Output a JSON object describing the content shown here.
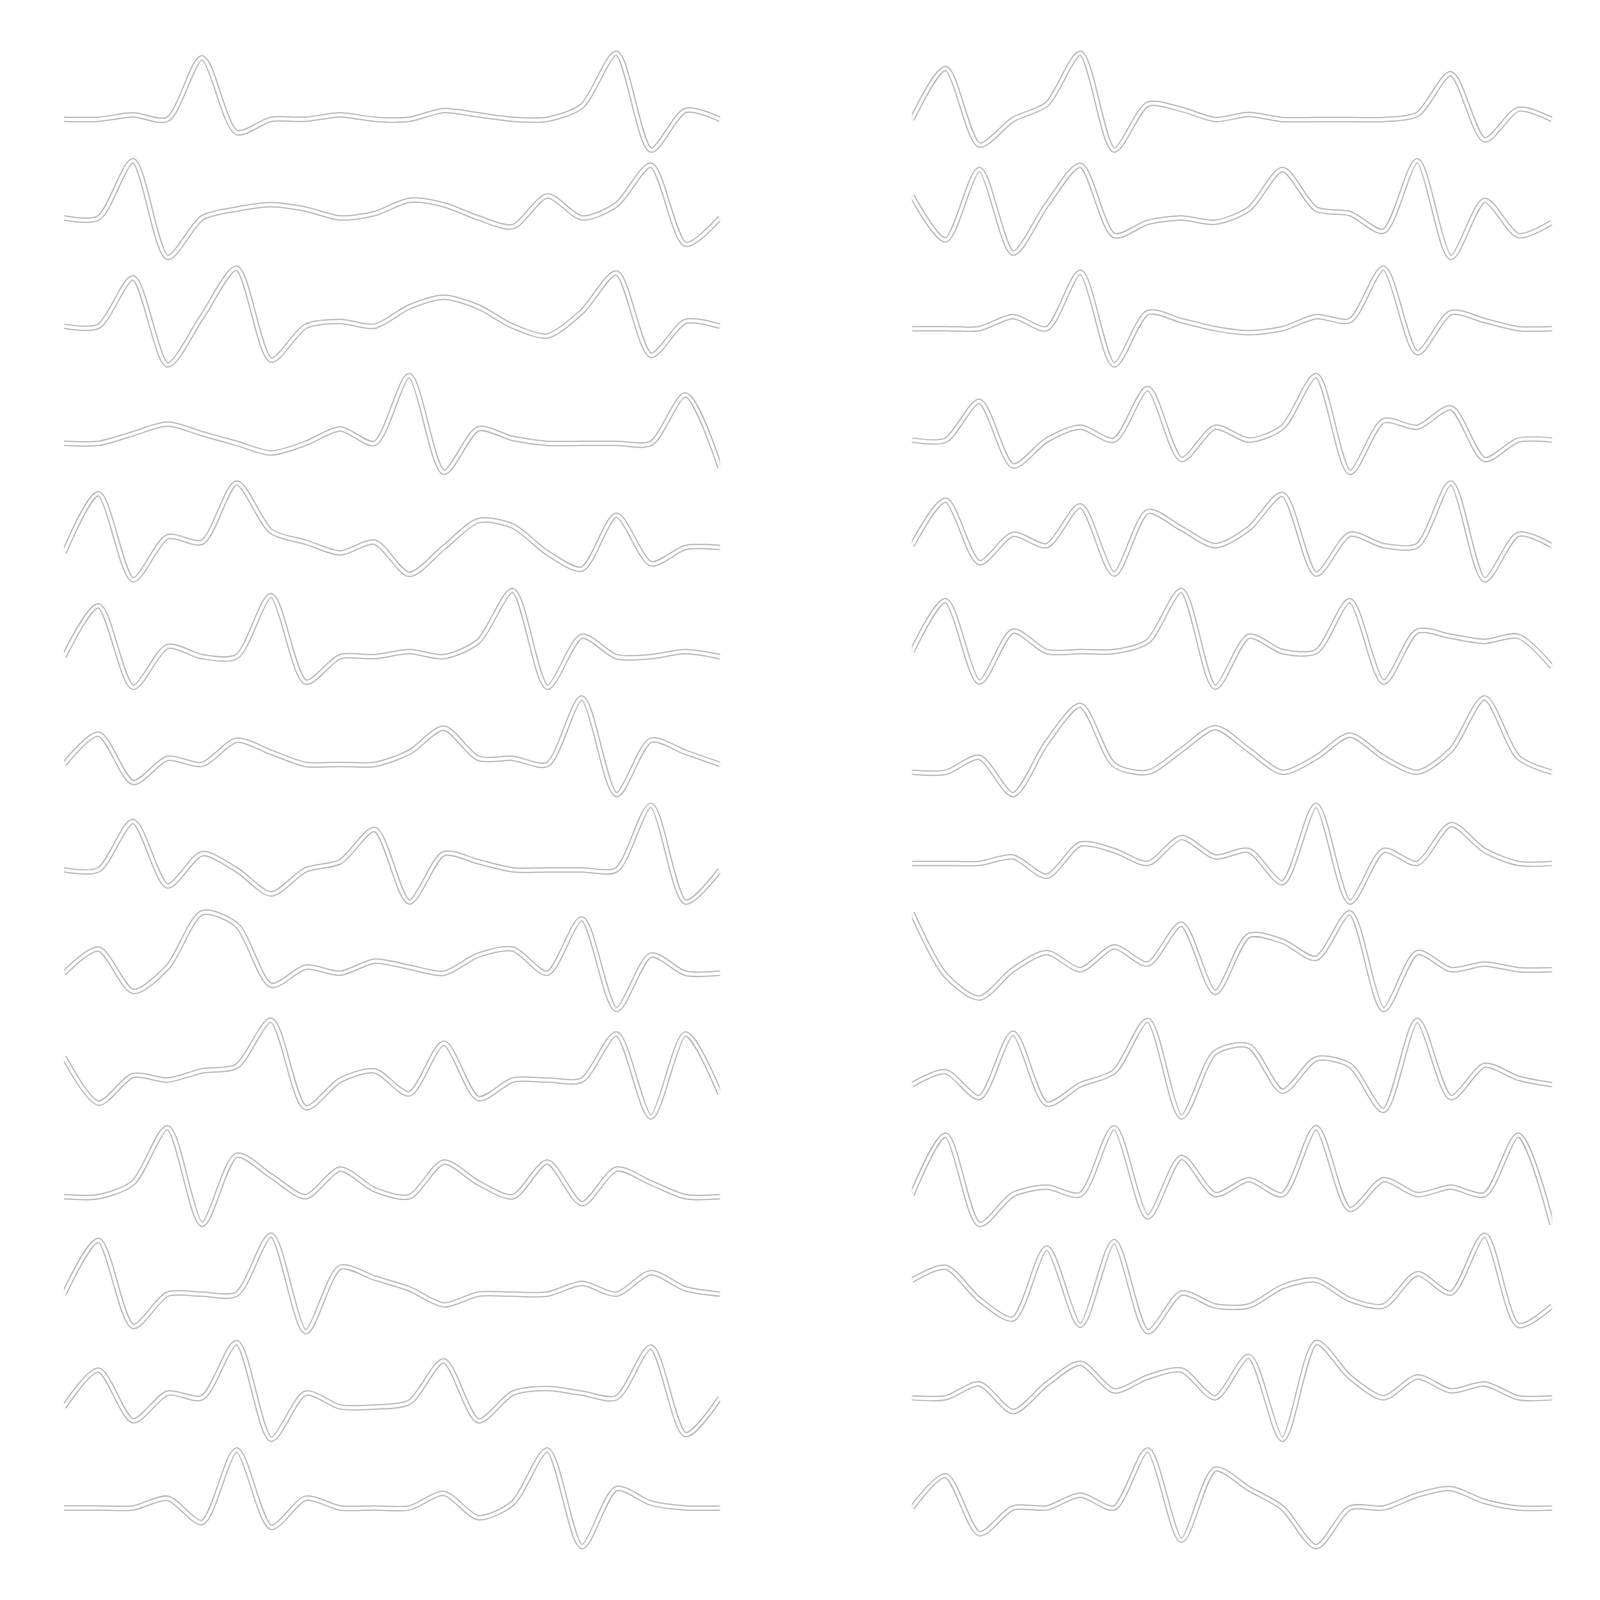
{
  "chart_data": [
    {
      "type": "line",
      "grid": false,
      "tick_labels": false,
      "line_style": "solid",
      "x": [
        0,
        1,
        2,
        3,
        4,
        5,
        6,
        7,
        8,
        9,
        10,
        11,
        12,
        13,
        14,
        15,
        16,
        17,
        18,
        19
      ],
      "series": [
        {
          "color": "#b5b5b5",
          "values": [
            0,
            0,
            0.1,
            0,
            1.4,
            -0.3,
            0,
            0,
            0.1,
            0,
            0,
            0.2,
            0.1,
            0,
            0,
            0.3,
            1.5,
            -0.7,
            0.2,
            0
          ]
        },
        {
          "color": "#b5b5b5",
          "values": [
            0,
            0,
            1.3,
            -0.9,
            0,
            0.2,
            0.3,
            0.2,
            0,
            0.1,
            0.4,
            0.3,
            0,
            -0.2,
            0.5,
            0,
            0.3,
            1.2,
            -0.6,
            0
          ]
        },
        {
          "color": "#b5b5b5",
          "values": [
            0,
            0,
            1.0,
            -0.8,
            0.2,
            1.2,
            -0.7,
            0,
            0.1,
            0,
            0.4,
            0.6,
            0.4,
            0,
            -0.2,
            0.3,
            1.1,
            -0.6,
            0.1,
            0
          ]
        },
        {
          "color": "#b5b5b5",
          "values": [
            0,
            0,
            0.2,
            0.4,
            0.2,
            0,
            -0.2,
            0,
            0.3,
            0,
            1.4,
            -0.6,
            0.3,
            0.1,
            0,
            0,
            0,
            0,
            1.0,
            -0.5
          ]
        },
        {
          "color": "#b5b5b5",
          "values": [
            0,
            1.1,
            -0.5,
            0.3,
            0.2,
            1.3,
            0.4,
            0.2,
            0,
            0.2,
            -0.4,
            0.1,
            0.6,
            0.5,
            0,
            -0.3,
            0.7,
            -0.2,
            0.1,
            0.1
          ]
        },
        {
          "color": "#b5b5b5",
          "values": [
            0,
            1.0,
            -0.6,
            0.2,
            0,
            0,
            1.2,
            -0.5,
            0,
            0,
            0.1,
            0,
            0.3,
            1.3,
            -0.6,
            0.4,
            0,
            0,
            0.1,
            0
          ]
        },
        {
          "color": "#b5b5b5",
          "values": [
            0,
            0.5,
            -0.3,
            0.1,
            0,
            0.4,
            0.2,
            0,
            0,
            0,
            0.2,
            0.6,
            0.1,
            0.1,
            0,
            1.1,
            -0.5,
            0.4,
            0.2,
            0
          ]
        },
        {
          "color": "#b5b5b5",
          "values": [
            0,
            0,
            0.6,
            -0.2,
            0.2,
            0,
            -0.3,
            0,
            0.1,
            0.5,
            -0.4,
            0.2,
            0.1,
            0,
            0,
            0,
            0,
            0.8,
            -0.4,
            0
          ]
        },
        {
          "color": "#b5b5b5",
          "values": [
            0,
            0.4,
            -0.3,
            0.1,
            1.0,
            0.8,
            -0.2,
            0.1,
            0,
            0.2,
            0.1,
            0,
            0.3,
            0.4,
            0,
            0.9,
            -0.6,
            0.3,
            0,
            0
          ]
        },
        {
          "color": "#b5b5b5",
          "values": [
            0.5,
            -0.5,
            0.1,
            0,
            0.2,
            0.3,
            1.3,
            -0.6,
            0,
            0.2,
            -0.3,
            0.8,
            -0.4,
            0,
            0,
            0,
            1.0,
            -0.8,
            1.0,
            -0.3
          ]
        },
        {
          "color": "#b5b5b5",
          "values": [
            0,
            0,
            0.2,
            1.0,
            -0.4,
            0.6,
            0.3,
            0,
            0.4,
            0.1,
            0,
            0.5,
            0.2,
            0,
            0.5,
            -0.1,
            0.4,
            0.2,
            0,
            0
          ]
        },
        {
          "color": "#b5b5b5",
          "values": [
            0,
            1.0,
            -0.6,
            0,
            0,
            0,
            1.1,
            -0.7,
            0.5,
            0.3,
            0.1,
            -0.2,
            0,
            0,
            0,
            0.2,
            0,
            0.4,
            0.1,
            0
          ]
        },
        {
          "color": "#b5b5b5",
          "values": [
            0,
            0.8,
            -0.3,
            0.3,
            0.2,
            1.4,
            -0.7,
            0.3,
            0,
            0,
            0.1,
            1.0,
            -0.3,
            0.3,
            0.4,
            0.3,
            0.2,
            1.3,
            -0.6,
            0.2
          ]
        },
        {
          "color": "#b5b5b5",
          "values": [
            0,
            0,
            0,
            0.2,
            -0.3,
            1.2,
            -0.4,
            0.2,
            0,
            0,
            0,
            0.3,
            -0.2,
            0.1,
            1.2,
            -0.8,
            0.4,
            0.1,
            0,
            0
          ]
        }
      ]
    },
    {
      "type": "line",
      "grid": false,
      "tick_labels": false,
      "line_style": "solid",
      "x": [
        0,
        1,
        2,
        3,
        4,
        5,
        6,
        7,
        8,
        9,
        10,
        11,
        12,
        13,
        14,
        15,
        16,
        17,
        18,
        19
      ],
      "series": [
        {
          "color": "#b5b5b5",
          "values": [
            0,
            1.0,
            -0.5,
            0,
            0.3,
            1.3,
            -0.6,
            0.3,
            0.2,
            0,
            0.1,
            0,
            0,
            0,
            0,
            0.1,
            0.9,
            -0.4,
            0.2,
            0
          ]
        },
        {
          "color": "#b5b5b5",
          "values": [
            0.6,
            -0.4,
            1.2,
            -0.7,
            0.4,
            1.3,
            -0.3,
            0,
            0.1,
            0,
            0.3,
            1.2,
            0.3,
            0.2,
            -0.2,
            1.4,
            -0.8,
            0.5,
            -0.3,
            0
          ]
        },
        {
          "color": "#b5b5b5",
          "values": [
            0,
            0,
            0,
            0.3,
            0,
            1.4,
            -0.9,
            0.4,
            0.2,
            0,
            -0.1,
            0,
            0.3,
            0.2,
            1.5,
            -0.6,
            0.4,
            0.2,
            0,
            0
          ]
        },
        {
          "color": "#b5b5b5",
          "values": [
            0,
            0,
            0.6,
            -0.4,
            0,
            0.2,
            0,
            0.8,
            -0.3,
            0.2,
            0,
            0.2,
            1.0,
            -0.5,
            0.3,
            0.2,
            0.5,
            -0.3,
            0,
            0
          ]
        },
        {
          "color": "#b5b5b5",
          "values": [
            0,
            0.8,
            -0.3,
            0.2,
            0,
            0.7,
            -0.5,
            0.6,
            0.3,
            0,
            0.3,
            0.9,
            -0.5,
            0.2,
            0,
            0,
            1.1,
            -0.6,
            0.2,
            0
          ]
        },
        {
          "color": "#b5b5b5",
          "values": [
            0,
            1.0,
            -0.6,
            0.4,
            0,
            0,
            0,
            0.2,
            1.2,
            -0.7,
            0.3,
            0,
            0,
            1.0,
            -0.6,
            0.4,
            0.3,
            0.2,
            0.3,
            -0.3
          ]
        },
        {
          "color": "#b5b5b5",
          "values": [
            0,
            0,
            0.2,
            -0.3,
            0.4,
            0.9,
            0.1,
            0,
            0.3,
            0.6,
            0.3,
            0,
            0.2,
            0.5,
            0.2,
            0,
            0.3,
            1.0,
            0.2,
            0
          ]
        },
        {
          "color": "#b5b5b5",
          "values": [
            0,
            0,
            0,
            0.1,
            -0.2,
            0.3,
            0.2,
            0,
            0.4,
            0.1,
            0.2,
            -0.3,
            0.9,
            -0.6,
            0.2,
            0,
            0.6,
            0.2,
            0,
            0
          ]
        },
        {
          "color": "#b5b5b5",
          "values": [
            1.0,
            -0.1,
            -0.5,
            0,
            0.3,
            0,
            0.4,
            0.1,
            0.8,
            -0.4,
            0.6,
            0.5,
            0.2,
            1.0,
            -0.7,
            0.3,
            0,
            0.1,
            0,
            0
          ]
        },
        {
          "color": "#b5b5b5",
          "values": [
            0,
            0.2,
            -0.2,
            0.8,
            -0.3,
            0,
            0.2,
            1.0,
            -0.5,
            0.5,
            0.6,
            -0.1,
            0.4,
            0.3,
            -0.4,
            1.0,
            -0.2,
            0.3,
            0.1,
            0
          ]
        },
        {
          "color": "#b5b5b5",
          "values": [
            0,
            0.8,
            -0.4,
            0,
            0.1,
            0,
            0.9,
            -0.3,
            0.5,
            0,
            0.2,
            0,
            0.9,
            -0.2,
            0.2,
            0,
            0.1,
            0,
            0.8,
            -0.4
          ]
        },
        {
          "color": "#b5b5b5",
          "values": [
            0.4,
            0.6,
            0.1,
            -0.2,
            0.9,
            -0.3,
            1.0,
            -0.4,
            0.2,
            0,
            0,
            0.3,
            0.4,
            0.1,
            0,
            0.5,
            0.2,
            1.1,
            -0.3,
            0
          ]
        },
        {
          "color": "#b5b5b5",
          "values": [
            0,
            0,
            0.2,
            -0.2,
            0.2,
            0.5,
            0.1,
            0.3,
            0.4,
            0,
            0.6,
            -0.6,
            0.8,
            0.3,
            0,
            0.3,
            0.1,
            0.2,
            0,
            0
          ]
        },
        {
          "color": "#b5b5b5",
          "values": [
            0,
            0.5,
            -0.4,
            0,
            0,
            0.2,
            0,
            0.9,
            -0.5,
            0.6,
            0.3,
            0,
            -0.6,
            0,
            0,
            0.2,
            0.3,
            0.1,
            0,
            0
          ]
        }
      ]
    }
  ]
}
